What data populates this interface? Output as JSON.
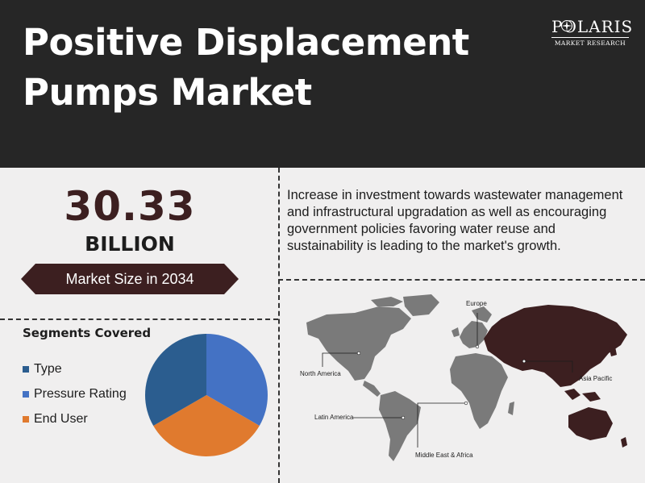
{
  "header": {
    "title_line1": "Positive Displacement",
    "title_line2": "Pumps Market"
  },
  "logo": {
    "name": "POLARIS",
    "subtitle": "MARKET RESEARCH"
  },
  "market": {
    "value": "30.33",
    "unit": "BILLION",
    "label": "Market Size in 2034"
  },
  "description": "Increase in investment towards wastewater management and infrastructural upgradation as well as encouraging government policies favoring water reuse and sustainability is leading to the market's growth.",
  "segments": {
    "title": "Segments Covered",
    "items": [
      {
        "label": "Type",
        "color": "#2b5d8f",
        "share": 0.3333
      },
      {
        "label": "Pressure Rating",
        "color": "#4472c4",
        "share": 0.3333
      },
      {
        "label": "End User",
        "color": "#e07a2e",
        "share": 0.3334
      }
    ]
  },
  "map": {
    "regions": [
      "Europe",
      "North America",
      "Asia Pacific",
      "Latin America",
      "Middle East & Africa"
    ],
    "highlight_color": "#3c1f20",
    "base_color": "#7a7a7a"
  },
  "colors": {
    "header_bg": "#262626",
    "accent": "#3c1f20",
    "page_bg": "#f0efef"
  }
}
